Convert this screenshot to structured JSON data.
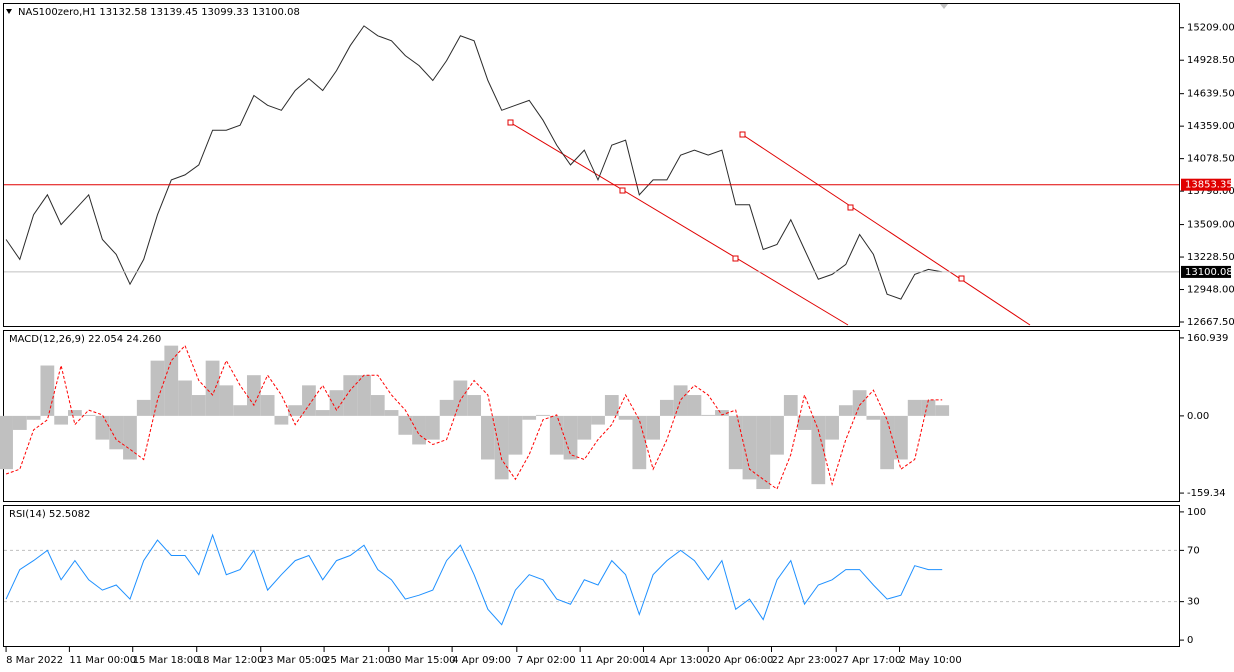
{
  "chart_data": [
    {
      "type": "line",
      "title": "NAS100zero,H1  13132.58 13139.45 13099.33 13100.08",
      "values": [
        13380,
        13208,
        13594,
        13766,
        13509,
        13637,
        13766,
        13380,
        13251,
        12994,
        13208,
        13594,
        13895,
        13938,
        14024,
        14324,
        14324,
        14367,
        14624,
        14539,
        14496,
        14667,
        14770,
        14667,
        14839,
        15054,
        15225,
        15139,
        15096,
        14968,
        14882,
        14753,
        14925,
        15139,
        15096,
        14753,
        14496,
        14539,
        14581,
        14410,
        14195,
        14024,
        14152,
        13895,
        14195,
        14238,
        13766,
        13895,
        13895,
        14109,
        14152,
        14109,
        14152,
        13680,
        13680,
        13294,
        13337,
        13551,
        13294,
        13037,
        13079,
        13165,
        13423,
        13251,
        12908,
        12865,
        13079,
        13122,
        13100
      ],
      "color": "#2b2b2b",
      "hlines": [
        {
          "value": 13853.35,
          "color": "#e00000",
          "box_color": "#e00000"
        },
        {
          "value": 13100.08,
          "color": "#c0c0c0",
          "box_color": "#000000"
        }
      ],
      "xlim": [
        -0.15,
        85.2
      ],
      "ylim": [
        12633,
        15414
      ],
      "yticks": [
        {
          "value": 15209,
          "label": "15209.00"
        },
        {
          "value": 14928.5,
          "label": "14928.50"
        },
        {
          "value": 14639.5,
          "label": "14639.50"
        },
        {
          "value": 14359,
          "label": "14359.00"
        },
        {
          "value": 14078.5,
          "label": "14078.50"
        },
        {
          "value": 13798,
          "label": "13798.00"
        },
        {
          "value": 13509,
          "label": "13509.00"
        },
        {
          "value": 13228.5,
          "label": "13228.50"
        },
        {
          "value": 12948,
          "label": "12948.00"
        },
        {
          "value": 12667.5,
          "label": "12667.50"
        }
      ]
    },
    {
      "type": "macd",
      "title": "MACD(12,26,9) 22.054 24.260",
      "values": [
        -110,
        -29,
        -8,
        104,
        -18,
        12,
        2,
        -49,
        -69,
        -90,
        33,
        114,
        145,
        73,
        43,
        114,
        63,
        22,
        84,
        43,
        -18,
        22,
        63,
        12,
        53,
        84,
        84,
        43,
        12,
        -39,
        -59,
        -49,
        33,
        73,
        43,
        -90,
        -131,
        -80,
        -8,
        2,
        -80,
        -90,
        -49,
        -18,
        43,
        -8,
        -110,
        -49,
        33,
        63,
        43,
        2,
        12,
        -110,
        -131,
        -151,
        -80,
        43,
        -29,
        -141,
        -49,
        22,
        53,
        -8,
        -110,
        -90,
        33,
        33,
        22
      ],
      "signal_values": [
        -120,
        -110,
        -29,
        -8,
        104,
        -18,
        12,
        2,
        -49,
        -69,
        -90,
        33,
        114,
        145,
        73,
        43,
        114,
        63,
        22,
        84,
        43,
        -18,
        22,
        63,
        12,
        53,
        84,
        84,
        43,
        12,
        -39,
        -59,
        -49,
        33,
        73,
        43,
        -90,
        -131,
        -80,
        -8,
        2,
        -80,
        -90,
        -49,
        -18,
        43,
        -8,
        -110,
        -49,
        33,
        63,
        43,
        2,
        12,
        -110,
        -131,
        -151,
        -80,
        43,
        -29,
        -141,
        -49,
        22,
        53,
        -8,
        -110,
        -90,
        33,
        33
      ],
      "color": "#c0c0c0",
      "signal_color": "#ff0000",
      "xlim": [
        -0.15,
        85.2
      ],
      "ylim": [
        -175.7,
        175.2
      ],
      "yticks": [
        160.939,
        {
          "value": 0,
          "label": "0.00"
        },
        -159.34
      ]
    },
    {
      "type": "line",
      "title": "RSI(14) 52.5082",
      "values": [
        32,
        55,
        62,
        70,
        47,
        62,
        47,
        39,
        43,
        32,
        62,
        78,
        66,
        66,
        51,
        82,
        51,
        55,
        70,
        39,
        51,
        62,
        66,
        47,
        62,
        66,
        74,
        55,
        47,
        32,
        35,
        39,
        62,
        74,
        51,
        24,
        12,
        39,
        51,
        47,
        32,
        28,
        47,
        43,
        62,
        51,
        20,
        51,
        62,
        70,
        62,
        47,
        62,
        24,
        32,
        16,
        47,
        62,
        28,
        43,
        47,
        55,
        55,
        43,
        32,
        35,
        58,
        55,
        55
      ],
      "color": "#1e90ff",
      "levels": [
        70,
        30
      ],
      "xlim": [
        -0.15,
        85.2
      ],
      "ylim": [
        -4.6,
        104.6
      ],
      "yticks": [
        100,
        70,
        30,
        0
      ],
      "xticks": [
        {
          "value": 0,
          "label": "8 Mar 2022"
        },
        {
          "value": 4.6,
          "label": "11 Mar 00:00"
        },
        {
          "value": 9.2,
          "label": "15 Mar 18:00"
        },
        {
          "value": 13.85,
          "label": "18 Mar 12:00"
        },
        {
          "value": 18.5,
          "label": "23 Mar 05:00"
        },
        {
          "value": 23.1,
          "label": "25 Mar 21:00"
        },
        {
          "value": 27.8,
          "label": "30 Mar 15:00"
        },
        {
          "value": 32.4,
          "label": "4 Apr 09:00"
        },
        {
          "value": 37.1,
          "label": "7 Apr 02:00"
        },
        {
          "value": 41.7,
          "label": "11 Apr 20:00"
        },
        {
          "value": 46.3,
          "label": "14 Apr 13:00"
        },
        {
          "value": 51,
          "label": "20 Apr 06:00"
        },
        {
          "value": 55.6,
          "label": "22 Apr 23:00"
        },
        {
          "value": 60.3,
          "label": "27 Apr 17:00"
        },
        {
          "value": 64.9,
          "label": "2 May 10:00"
        }
      ]
    }
  ]
}
